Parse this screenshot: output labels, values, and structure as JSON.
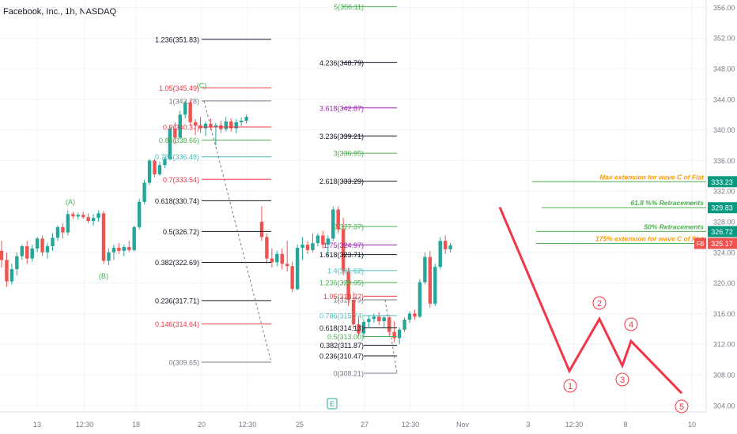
{
  "title": "Facebook, Inc., 1h, NASDAQ",
  "colors": {
    "up": "#26a69a",
    "down": "#ef5350",
    "black": "#131722",
    "red": "#f23645",
    "green": "#4caf50",
    "teal": "#4cbdb5",
    "purple": "#9c27b0",
    "orange": "#ff9800",
    "grid": "#f0f3fa",
    "axis": "#787b86",
    "wave": "#f23645"
  },
  "chart_data": {
    "type": "candlestick",
    "price_axis": {
      "min": 304,
      "max": 356,
      "ticks": [
        "304.00",
        "308.00",
        "312.00",
        "316.00",
        "320.00",
        "324.00",
        "328.00",
        "332.00",
        "336.00",
        "340.00",
        "344.00",
        "348.00",
        "352.00",
        "356.00"
      ]
    },
    "x_ticks": [
      "13",
      "12:30",
      "18",
      "20",
      "12:30",
      "25",
      "27",
      "12:30",
      "Nov",
      "3",
      "12:30",
      "8",
      "10"
    ],
    "candles": [
      [
        324.2,
        325.5,
        322.0,
        323.0
      ],
      [
        323.0,
        324.0,
        319.5,
        320.2
      ],
      [
        320.2,
        322.5,
        319.8,
        321.8
      ],
      [
        321.8,
        324.0,
        321.0,
        323.5
      ],
      [
        323.5,
        325.0,
        323.0,
        324.8
      ],
      [
        324.8,
        325.5,
        322.5,
        323.2
      ],
      [
        323.2,
        325.0,
        322.8,
        324.5
      ],
      [
        324.5,
        326.0,
        324.0,
        325.8
      ],
      [
        325.8,
        326.2,
        323.5,
        324.0
      ],
      [
        324.0,
        325.2,
        323.2,
        324.8
      ],
      [
        324.8,
        326.5,
        324.2,
        325.9
      ],
      [
        325.9,
        327.5,
        325.5,
        327.3
      ],
      [
        327.3,
        327.8,
        325.8,
        326.6
      ],
      [
        326.6,
        329.5,
        326.2,
        329.0
      ],
      [
        329.0,
        329.3,
        328.4,
        328.7
      ],
      [
        328.7,
        329.2,
        328.3,
        328.9
      ],
      [
        328.9,
        329.3,
        328.4,
        328.6
      ],
      [
        328.6,
        329.1,
        327.8,
        328.1
      ],
      [
        328.1,
        329.0,
        327.5,
        328.5
      ],
      [
        328.5,
        329.5,
        328.0,
        329.1
      ],
      [
        329.1,
        329.4,
        322.5,
        322.9
      ],
      [
        322.9,
        324.5,
        322.3,
        324.0
      ],
      [
        324.0,
        325.0,
        323.0,
        324.6
      ],
      [
        324.6,
        325.2,
        323.8,
        324.2
      ],
      [
        324.2,
        325.0,
        323.5,
        324.7
      ],
      [
        324.7,
        325.5,
        324.0,
        324.3
      ],
      [
        324.3,
        327.5,
        324.1,
        327.3
      ],
      [
        327.3,
        331.0,
        327.0,
        330.6
      ],
      [
        330.6,
        333.5,
        330.3,
        333.1
      ],
      [
        333.1,
        336.2,
        332.8,
        336.0
      ],
      [
        336.0,
        336.2,
        333.8,
        334.2
      ],
      [
        334.2,
        335.8,
        334.0,
        335.4
      ],
      [
        335.4,
        336.5,
        335.0,
        336.2
      ],
      [
        336.2,
        340.5,
        336.0,
        340.2
      ],
      [
        340.2,
        341.0,
        338.2,
        339.0
      ],
      [
        339.0,
        342.5,
        338.8,
        342.0
      ],
      [
        342.0,
        343.8,
        341.5,
        343.6
      ],
      [
        343.6,
        343.9,
        340.5,
        341.0
      ],
      [
        341.0,
        341.4,
        339.3,
        340.6
      ],
      [
        340.6,
        341.7,
        339.6,
        340.2
      ],
      [
        340.2,
        341.1,
        339.2,
        340.8
      ],
      [
        340.8,
        341.5,
        340.0,
        340.4
      ],
      [
        340.4,
        340.9,
        338.0,
        340.6
      ],
      [
        340.6,
        341.2,
        339.6,
        340.1
      ],
      [
        340.1,
        341.7,
        339.8,
        341.1
      ],
      [
        341.1,
        341.5,
        339.8,
        340.2
      ],
      [
        340.2,
        341.4,
        339.6,
        341.0
      ],
      [
        341.0,
        341.6,
        340.5,
        341.2
      ],
      [
        341.2,
        342.0,
        340.8,
        341.7
      ],
      [
        null,
        null,
        null,
        null
      ],
      [
        null,
        null,
        null,
        null
      ],
      [
        328.0,
        330.0,
        325.5,
        326.0
      ],
      [
        326.0,
        326.5,
        322.5,
        323.2
      ],
      [
        323.2,
        324.5,
        322.0,
        322.7
      ],
      [
        322.7,
        324.2,
        322.2,
        323.8
      ],
      [
        323.8,
        324.5,
        321.8,
        322.5
      ],
      [
        322.5,
        325.5,
        321.5,
        322.2
      ],
      [
        322.2,
        322.8,
        318.8,
        319.2
      ],
      [
        319.2,
        325.0,
        319.0,
        324.6
      ],
      [
        324.6,
        326.0,
        323.0,
        325.0
      ],
      [
        325.0,
        325.5,
        323.8,
        324.3
      ],
      [
        324.3,
        326.5,
        324.0,
        325.2
      ],
      [
        325.2,
        326.5,
        324.8,
        326.2
      ],
      [
        326.2,
        326.8,
        324.5,
        325.0
      ],
      [
        325.0,
        326.2,
        323.5,
        325.8
      ],
      [
        325.8,
        330.0,
        325.5,
        329.6
      ],
      [
        329.6,
        330.0,
        326.5,
        327.0
      ],
      [
        327.0,
        328.5,
        321.0,
        321.5
      ],
      [
        321.5,
        322.0,
        317.0,
        317.8
      ],
      [
        317.8,
        318.8,
        314.0,
        314.6
      ],
      [
        314.6,
        315.5,
        313.0,
        313.4
      ],
      [
        313.4,
        315.2,
        312.8,
        314.9
      ],
      [
        314.9,
        315.8,
        314.2,
        315.3
      ],
      [
        315.3,
        316.0,
        314.8,
        315.6
      ],
      [
        315.6,
        316.2,
        314.5,
        315.0
      ],
      [
        315.0,
        315.7,
        314.2,
        315.5
      ],
      [
        315.5,
        315.8,
        313.0,
        313.6
      ],
      [
        313.6,
        315.0,
        312.2,
        312.8
      ],
      [
        312.8,
        314.2,
        312.0,
        313.9
      ],
      [
        313.9,
        315.5,
        313.6,
        315.2
      ],
      [
        315.2,
        316.3,
        314.8,
        316.0
      ],
      [
        316.0,
        316.5,
        315.2,
        315.6
      ],
      [
        315.6,
        320.5,
        315.4,
        320.1
      ],
      [
        320.1,
        324.0,
        319.8,
        323.4
      ],
      [
        323.4,
        324.2,
        316.8,
        317.3
      ],
      [
        317.3,
        322.5,
        317.0,
        322.1
      ],
      [
        322.1,
        326.0,
        321.8,
        325.5
      ],
      [
        325.5,
        326.2,
        323.8,
        324.4
      ],
      [
        324.4,
        325.2,
        324.0,
        324.9
      ]
    ],
    "fib_left": [
      {
        "label": "1.236(351.83)",
        "price": 351.83,
        "color": "black"
      },
      {
        "label": "1.05(345.49)",
        "price": 345.49,
        "color": "red"
      },
      {
        "label": "1(343.78)",
        "price": 343.78,
        "color": "axis"
      },
      {
        "label": "0.9(340.37)",
        "price": 340.37,
        "color": "red"
      },
      {
        "label": "0.85(338.66)",
        "price": 338.66,
        "color": "green"
      },
      {
        "label": "0.786(336.48)",
        "price": 336.48,
        "color": "teal"
      },
      {
        "label": "0.7(333.54)",
        "price": 333.54,
        "color": "red"
      },
      {
        "label": "0.618(330.74)",
        "price": 330.74,
        "color": "black"
      },
      {
        "label": "0.5(326.72)",
        "price": 326.72,
        "color": "black"
      },
      {
        "label": "0.382(322.69)",
        "price": 322.69,
        "color": "black"
      },
      {
        "label": "0.236(317.71)",
        "price": 317.71,
        "color": "black"
      },
      {
        "label": "0.146(314.64)",
        "price": 314.64,
        "color": "red"
      },
      {
        "label": "0(309.65)",
        "price": 309.65,
        "color": "axis"
      }
    ],
    "fib_mid": [
      {
        "label": "5(356.11)",
        "price": 356.11,
        "color": "green"
      },
      {
        "label": "4.236(348.79)",
        "price": 348.79,
        "color": "black"
      },
      {
        "label": "3.618(342.87)",
        "price": 342.87,
        "color": "purple"
      },
      {
        "label": "3.236(339.21)",
        "price": 339.21,
        "color": "black"
      },
      {
        "label": "3(336.95)",
        "price": 336.95,
        "color": "green"
      },
      {
        "label": "2.618(333.29)",
        "price": 333.29,
        "color": "black"
      },
      {
        "label": "2(327.37)",
        "price": 327.37,
        "color": "green"
      },
      {
        "label": "1.75(324.97)",
        "price": 324.97,
        "color": "purple"
      },
      {
        "label": "1.618(323.71)",
        "price": 323.71,
        "color": "black"
      },
      {
        "label": "1.4(321.62)",
        "price": 321.62,
        "color": "teal"
      },
      {
        "label": "1.236(320.05)",
        "price": 320.05,
        "color": "green"
      }
    ],
    "fib_right": [
      {
        "label": "1.05(318.27)",
        "price": 318.27,
        "color": "red"
      },
      {
        "label": "1(317.79)",
        "price": 317.79,
        "color": "axis"
      },
      {
        "label": "0.786(315.74)",
        "price": 315.74,
        "color": "teal"
      },
      {
        "label": "0.618(314.13)",
        "price": 314.13,
        "color": "black"
      },
      {
        "label": "0.5(313.00)",
        "price": 313.0,
        "color": "green"
      },
      {
        "label": "0.382(311.87)",
        "price": 311.87,
        "color": "black"
      },
      {
        "label": "0.236(310.47)",
        "price": 310.47,
        "color": "black"
      },
      {
        "label": "0(308.21)",
        "price": 308.21,
        "color": "axis"
      }
    ],
    "wave_labels": [
      {
        "text": "(A)",
        "price": 330.6,
        "color": "green"
      },
      {
        "text": "(B)",
        "price": 320.9,
        "color": "green"
      },
      {
        "text": "(C)",
        "price": 345.8,
        "color": "green"
      }
    ],
    "annotations": [
      {
        "text": "Max extension for wave C of Flat",
        "price": 333.23,
        "badge": "333.23",
        "color": "green",
        "textcolor": "orange"
      },
      {
        "text": "61.8 %% Retracements",
        "price": 329.83,
        "badge": "329.83",
        "color": "green",
        "textcolor": "green"
      },
      {
        "text": "50% Retracements",
        "price": 326.72,
        "badge": "326.72",
        "color": "green",
        "textcolor": "green"
      },
      {
        "text": "175% extension for wave C of Flat",
        "price": 325.17,
        "badge": "325.17",
        "color": "green",
        "textcolor": "orange"
      }
    ],
    "current_price": {
      "symbol": "FB",
      "price": 325.17
    },
    "projection": {
      "points": [
        329.9,
        308.5,
        315.3,
        309.2,
        312.4,
        305.6
      ],
      "labels": [
        "1",
        "2",
        "3",
        "4",
        "5"
      ]
    },
    "earnings_marker": "E"
  }
}
